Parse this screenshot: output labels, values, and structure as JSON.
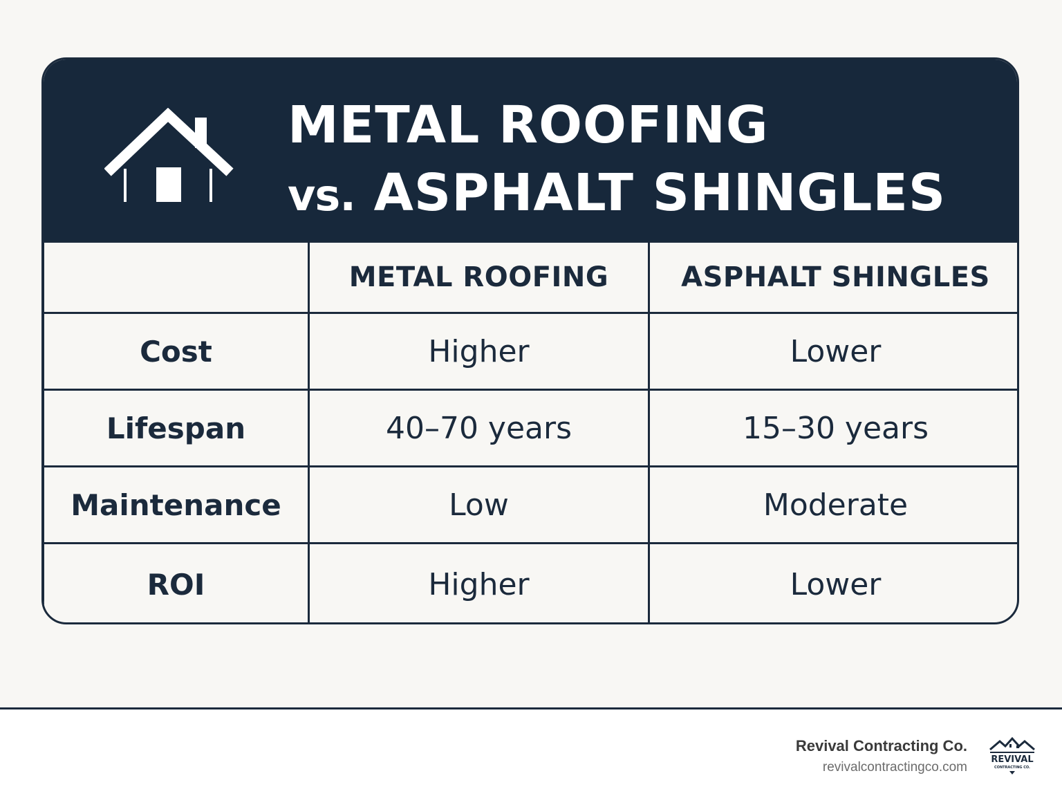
{
  "header": {
    "title_line1": "METAL ROOFING",
    "title_vs": "vs.",
    "title_line2": "ASPHALT SHINGLES",
    "icon": "house-icon"
  },
  "table": {
    "columns": [
      "",
      "METAL ROOFING",
      "ASPHALT SHINGLES"
    ],
    "rows": [
      {
        "label": "Cost",
        "metal": "Higher",
        "asphalt": "Lower"
      },
      {
        "label": "Lifespan",
        "metal": "40–70 years",
        "asphalt": "15–30 years"
      },
      {
        "label": "Maintenance",
        "metal": "Low",
        "asphalt": "Moderate"
      },
      {
        "label": "ROI",
        "metal": "Higher",
        "asphalt": "Lower"
      }
    ]
  },
  "footer": {
    "company_name": "Revival Contracting Co.",
    "website": "revivalcontractingco.com",
    "logo_text": "REVIVAL",
    "logo_subtext": "CONTRACTING CO."
  },
  "colors": {
    "navy": "#17283b",
    "text": "#1b2a3c",
    "background": "#f8f7f4"
  }
}
